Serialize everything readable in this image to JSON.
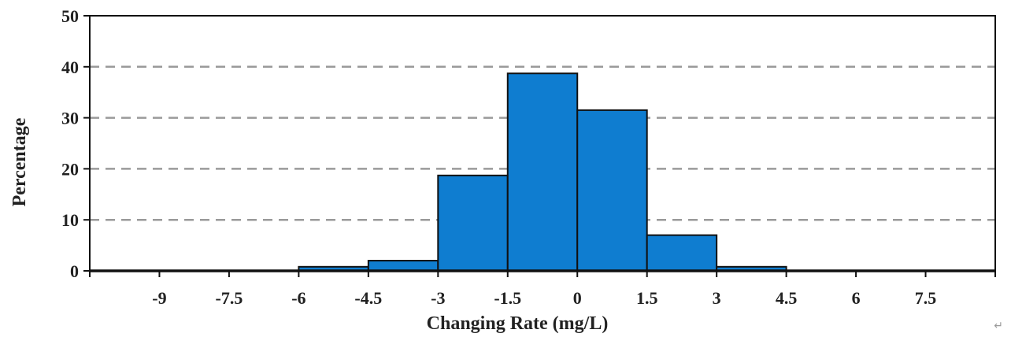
{
  "chart_data": {
    "type": "bar",
    "subtype": "histogram",
    "title": "",
    "xlabel": "Changing Rate (mg/L)",
    "ylabel": "Percentage",
    "xlim": [
      -10.5,
      9.0
    ],
    "ylim": [
      0,
      50
    ],
    "xticks": [
      "-9",
      "-7.5",
      "-6",
      "-4.5",
      "-3",
      "-1.5",
      "0",
      "1.5",
      "3",
      "4.5",
      "6",
      "7.5"
    ],
    "xtick_values": [
      -9,
      -7.5,
      -6,
      -4.5,
      -3,
      -1.5,
      0,
      1.5,
      3,
      4.5,
      6,
      7.5
    ],
    "yticks": [
      "0",
      "10",
      "20",
      "30",
      "40",
      "50"
    ],
    "ytick_values": [
      0,
      10,
      20,
      30,
      40,
      50
    ],
    "bins": [
      {
        "from": -6,
        "to": -4.5,
        "value": 0.8
      },
      {
        "from": -4.5,
        "to": -3,
        "value": 2.0
      },
      {
        "from": -3,
        "to": -1.5,
        "value": 18.7
      },
      {
        "from": -1.5,
        "to": 0,
        "value": 38.7
      },
      {
        "from": 0,
        "to": 1.5,
        "value": 31.5
      },
      {
        "from": 1.5,
        "to": 3,
        "value": 7.0
      },
      {
        "from": 3,
        "to": 4.5,
        "value": 0.8
      }
    ],
    "grid": "horizontal dashed",
    "legend": "none",
    "colors": {
      "bar_fill": "#0F7DD0",
      "bar_stroke": "#111111",
      "grid": "#9a9a9a",
      "axis": "#111111"
    }
  },
  "corner_mark": "↵"
}
